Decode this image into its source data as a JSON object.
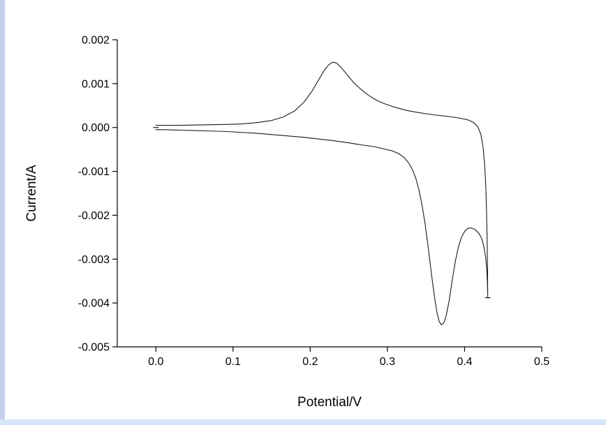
{
  "page": {
    "background": "#ffffff",
    "left_edge_color": "#c5d0ed",
    "bottom_edge_color": "#d6e6f8"
  },
  "chart_data": {
    "type": "line",
    "subtype": "cyclic-voltammogram",
    "title": "",
    "xlabel": "Potential/V",
    "ylabel": "Current/A",
    "xlim": [
      -0.05,
      0.5
    ],
    "ylim": [
      -0.005,
      0.002
    ],
    "grid": false,
    "legend": null,
    "axis_color": "#000000",
    "text_color": "#000000",
    "line_color": "#1a1a1a",
    "x_ticks": [
      0.0,
      0.1,
      0.2,
      0.3,
      0.4,
      0.5
    ],
    "x_tick_labels": [
      "0.0",
      "0.1",
      "0.2",
      "0.3",
      "0.4",
      "0.5"
    ],
    "y_ticks": [
      0.002,
      0.001,
      0.0,
      -0.001,
      -0.002,
      -0.003,
      -0.004,
      -0.005
    ],
    "y_tick_labels": [
      "0.002",
      "0.001",
      "0.000",
      "-0.001",
      "-0.002",
      "-0.003",
      "-0.004",
      "-0.005"
    ],
    "anodic_peak": {
      "potential": 0.23,
      "current": 0.0015
    },
    "cathodic_peak": {
      "potential": 0.37,
      "current": -0.0045
    },
    "switching_point": {
      "potential": 0.43,
      "current": -0.0039
    },
    "endpoint_markers": [
      [
        0.0,
        0.0
      ],
      [
        0.43,
        -0.00388
      ]
    ],
    "series": [
      {
        "name": "cv-cycle",
        "points": [
          [
            0.0,
            5e-05
          ],
          [
            0.03,
            5e-05
          ],
          [
            0.06,
            6e-05
          ],
          [
            0.09,
            7e-05
          ],
          [
            0.11,
            8e-05
          ],
          [
            0.13,
            0.00011
          ],
          [
            0.15,
            0.00016
          ],
          [
            0.165,
            0.00024
          ],
          [
            0.18,
            0.00038
          ],
          [
            0.192,
            0.00058
          ],
          [
            0.202,
            0.00082
          ],
          [
            0.21,
            0.00106
          ],
          [
            0.218,
            0.0013
          ],
          [
            0.224,
            0.00143
          ],
          [
            0.229,
            0.00149
          ],
          [
            0.234,
            0.00147
          ],
          [
            0.24,
            0.00137
          ],
          [
            0.248,
            0.0012
          ],
          [
            0.256,
            0.00103
          ],
          [
            0.265,
            0.00088
          ],
          [
            0.275,
            0.00074
          ],
          [
            0.285,
            0.00063
          ],
          [
            0.295,
            0.00055
          ],
          [
            0.31,
            0.00046
          ],
          [
            0.325,
            0.00039
          ],
          [
            0.34,
            0.00034
          ],
          [
            0.36,
            0.00029
          ],
          [
            0.38,
            0.00025
          ],
          [
            0.395,
            0.00021
          ],
          [
            0.405,
            0.00017
          ],
          [
            0.412,
            0.00011
          ],
          [
            0.417,
            2e-05
          ],
          [
            0.421,
            -0.00015
          ],
          [
            0.424,
            -0.00045
          ],
          [
            0.426,
            -0.00085
          ],
          [
            0.4275,
            -0.00135
          ],
          [
            0.4285,
            -0.00195
          ],
          [
            0.4293,
            -0.00265
          ],
          [
            0.4298,
            -0.0033
          ],
          [
            0.43,
            -0.00388
          ],
          [
            0.4296,
            -0.00355
          ],
          [
            0.4288,
            -0.00325
          ],
          [
            0.4275,
            -0.00298
          ],
          [
            0.425,
            -0.00272
          ],
          [
            0.422,
            -0.00252
          ],
          [
            0.418,
            -0.0024
          ],
          [
            0.413,
            -0.00232
          ],
          [
            0.408,
            -0.00229
          ],
          [
            0.404,
            -0.0023
          ],
          [
            0.4,
            -0.00237
          ],
          [
            0.396,
            -0.0025
          ],
          [
            0.392,
            -0.00272
          ],
          [
            0.388,
            -0.00305
          ],
          [
            0.384,
            -0.00348
          ],
          [
            0.38,
            -0.00395
          ],
          [
            0.376,
            -0.0043
          ],
          [
            0.373,
            -0.00446
          ],
          [
            0.37,
            -0.0045
          ],
          [
            0.367,
            -0.00442
          ],
          [
            0.364,
            -0.0042
          ],
          [
            0.361,
            -0.00386
          ],
          [
            0.357,
            -0.00333
          ],
          [
            0.353,
            -0.00275
          ],
          [
            0.349,
            -0.00222
          ],
          [
            0.345,
            -0.00178
          ],
          [
            0.341,
            -0.00143
          ],
          [
            0.337,
            -0.00117
          ],
          [
            0.333,
            -0.00098
          ],
          [
            0.328,
            -0.00082
          ],
          [
            0.322,
            -0.00069
          ],
          [
            0.315,
            -0.0006
          ],
          [
            0.306,
            -0.00053
          ],
          [
            0.296,
            -0.00049
          ],
          [
            0.284,
            -0.00044
          ],
          [
            0.268,
            -0.0004
          ],
          [
            0.25,
            -0.00035
          ],
          [
            0.23,
            -0.0003
          ],
          [
            0.21,
            -0.00026
          ],
          [
            0.19,
            -0.00022
          ],
          [
            0.17,
            -0.00019
          ],
          [
            0.15,
            -0.00016
          ],
          [
            0.13,
            -0.00013
          ],
          [
            0.11,
            -0.00011
          ],
          [
            0.09,
            -9e-05
          ],
          [
            0.07,
            -8e-05
          ],
          [
            0.05,
            -7e-05
          ],
          [
            0.03,
            -6e-05
          ],
          [
            0.01,
            -5e-05
          ],
          [
            0.0,
            -5e-05
          ]
        ]
      }
    ]
  }
}
